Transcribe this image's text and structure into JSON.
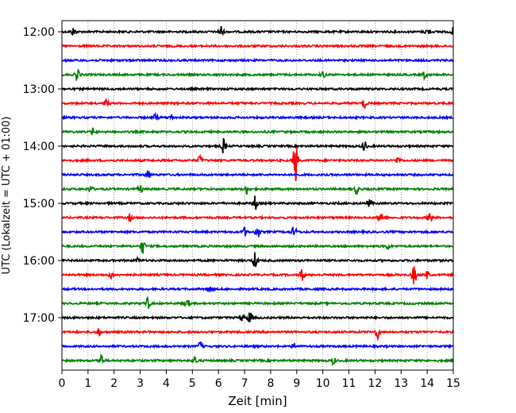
{
  "chart_data": {
    "type": "line",
    "title": "",
    "xlabel": "Zeit  [min]",
    "ylabel": "UTC (Lokalzeit = UTC + 01:00)",
    "xlim": [
      0,
      15
    ],
    "x_ticks": [
      0,
      1,
      2,
      3,
      4,
      5,
      6,
      7,
      8,
      9,
      10,
      11,
      12,
      13,
      14,
      15
    ],
    "x_tick_labels": [
      "0",
      "1",
      "2",
      "3",
      "4",
      "5",
      "6",
      "7",
      "8",
      "9",
      "10",
      "11",
      "12",
      "13",
      "14",
      "15"
    ],
    "y_tick_labels": [
      "12:00",
      "13:00",
      "14:00",
      "15:00",
      "16:00",
      "17:00"
    ],
    "grid": "vertical dotted at each minute",
    "trace_colors": [
      "#000000",
      "#ff0000",
      "#0000ff",
      "#008000"
    ],
    "rows": [
      {
        "start": "12:00",
        "events": [
          {
            "t": 0.45,
            "amp": 0.3
          },
          {
            "t": 6.1,
            "amp": 0.45
          },
          {
            "t": 14.0,
            "amp": 0.25
          },
          {
            "t": 15.0,
            "amp": 0.25
          }
        ]
      },
      {
        "start": "12:15",
        "events": []
      },
      {
        "start": "12:30",
        "events": []
      },
      {
        "start": "12:45",
        "events": [
          {
            "t": 0.6,
            "amp": 0.5
          },
          {
            "t": 10.0,
            "amp": 0.25
          },
          {
            "t": 13.9,
            "amp": 0.25
          }
        ]
      },
      {
        "start": "13:00",
        "events": []
      },
      {
        "start": "13:15",
        "events": [
          {
            "t": 1.7,
            "amp": 0.25
          },
          {
            "t": 11.6,
            "amp": 0.35
          }
        ]
      },
      {
        "start": "13:30",
        "events": [
          {
            "t": 3.6,
            "amp": 0.25
          },
          {
            "t": 4.2,
            "amp": 0.2
          }
        ]
      },
      {
        "start": "13:45",
        "events": [
          {
            "t": 1.2,
            "amp": 0.25
          }
        ]
      },
      {
        "start": "14:00",
        "events": [
          {
            "t": 6.2,
            "amp": 0.5
          },
          {
            "t": 11.6,
            "amp": 0.35
          }
        ]
      },
      {
        "start": "14:15",
        "events": [
          {
            "t": 5.3,
            "amp": 0.3
          },
          {
            "t": 8.95,
            "amp": 1.6
          },
          {
            "t": 12.9,
            "amp": 0.25
          }
        ]
      },
      {
        "start": "14:30",
        "events": [
          {
            "t": 3.3,
            "amp": 0.3
          }
        ]
      },
      {
        "start": "14:45",
        "events": [
          {
            "t": 1.1,
            "amp": 0.25
          },
          {
            "t": 3.0,
            "amp": 0.3
          },
          {
            "t": 7.1,
            "amp": 0.35
          },
          {
            "t": 11.3,
            "amp": 0.3
          }
        ]
      },
      {
        "start": "15:00",
        "events": [
          {
            "t": 7.4,
            "amp": 0.5
          },
          {
            "t": 11.8,
            "amp": 0.25
          }
        ]
      },
      {
        "start": "15:15",
        "events": [
          {
            "t": 2.6,
            "amp": 0.25
          },
          {
            "t": 12.2,
            "amp": 0.45
          },
          {
            "t": 14.1,
            "amp": 0.4
          }
        ]
      },
      {
        "start": "15:30",
        "events": [
          {
            "t": 7.0,
            "amp": 0.3
          },
          {
            "t": 7.5,
            "amp": 0.45
          },
          {
            "t": 8.9,
            "amp": 0.45
          }
        ]
      },
      {
        "start": "15:45",
        "events": [
          {
            "t": 3.1,
            "amp": 0.5
          },
          {
            "t": 12.5,
            "amp": 0.2
          }
        ]
      },
      {
        "start": "16:00",
        "events": [
          {
            "t": 7.4,
            "amp": 0.55
          },
          {
            "t": 2.9,
            "amp": 0.2
          }
        ]
      },
      {
        "start": "16:15",
        "events": [
          {
            "t": 1.9,
            "amp": 0.25
          },
          {
            "t": 9.2,
            "amp": 0.4
          },
          {
            "t": 13.5,
            "amp": 0.7
          },
          {
            "t": 14.0,
            "amp": 0.25
          }
        ]
      },
      {
        "start": "16:30",
        "events": [
          {
            "t": 5.7,
            "amp": 0.2
          }
        ]
      },
      {
        "start": "16:45",
        "events": [
          {
            "t": 3.3,
            "amp": 0.4
          },
          {
            "t": 4.8,
            "amp": 0.3
          }
        ]
      },
      {
        "start": "17:00",
        "events": [
          {
            "t": 6.9,
            "amp": 0.25
          },
          {
            "t": 7.2,
            "amp": 0.5
          }
        ]
      },
      {
        "start": "17:15",
        "events": [
          {
            "t": 1.4,
            "amp": 0.3
          },
          {
            "t": 12.1,
            "amp": 0.45
          }
        ]
      },
      {
        "start": "17:30",
        "events": [
          {
            "t": 5.3,
            "amp": 0.3
          },
          {
            "t": 8.9,
            "amp": 0.2
          }
        ]
      },
      {
        "start": "17:45",
        "events": [
          {
            "t": 1.5,
            "amp": 0.5
          },
          {
            "t": 5.1,
            "amp": 0.3
          },
          {
            "t": 10.4,
            "amp": 0.25
          }
        ]
      }
    ]
  }
}
